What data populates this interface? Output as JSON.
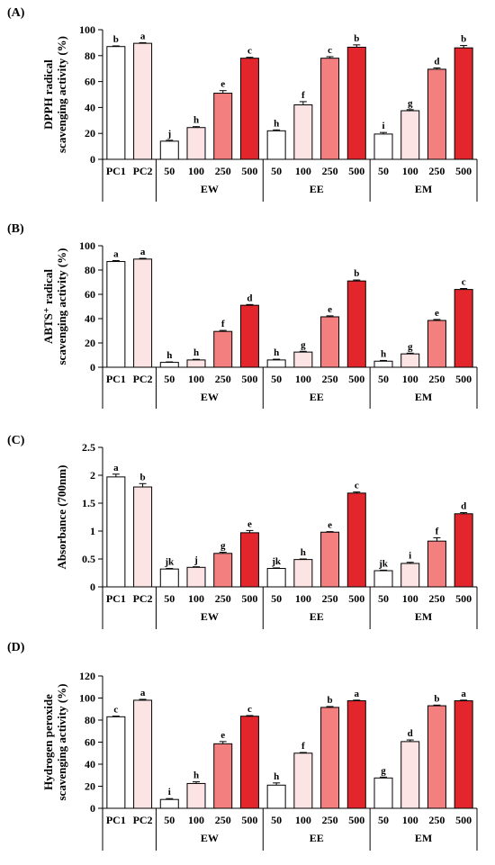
{
  "colors": {
    "PC1": "#ffffff",
    "PC2": "#fde4e4",
    "50": "#ffffff",
    "100": "#fde4e4",
    "250": "#f47f7f",
    "500": "#e3262b",
    "stroke": "#000000"
  },
  "chart_data": [
    {
      "type": "bar",
      "panel_label": "(A)",
      "ylabel": [
        "DPPH  radical",
        "scavenging activity (%)"
      ],
      "ylim": [
        0,
        100
      ],
      "yticks": [
        0,
        20,
        40,
        60,
        80,
        100
      ],
      "categories": [
        "PC1",
        "PC2",
        "50",
        "100",
        "250",
        "500",
        "50",
        "100",
        "250",
        "500",
        "50",
        "100",
        "250",
        "500"
      ],
      "groups": [
        "EW",
        "EE",
        "EM"
      ],
      "values": [
        87,
        89.5,
        14,
        24.5,
        51,
        78,
        22,
        42,
        78,
        86.5,
        19.5,
        37.5,
        69.5,
        86
      ],
      "errors": [
        0.5,
        0.5,
        0.7,
        0.7,
        2,
        0.7,
        0.7,
        2.5,
        1.2,
        1.8,
        1.2,
        0.8,
        1,
        1.8
      ],
      "letters": [
        "b",
        "a",
        "j",
        "h",
        "e",
        "c",
        "h",
        "f",
        "c",
        "b",
        "i",
        "g",
        "d",
        "b"
      ]
    },
    {
      "type": "bar",
      "panel_label": "(B)",
      "ylabel": [
        "ABTS⁺ radical",
        "scavenging activity (%)"
      ],
      "ylim": [
        0,
        100
      ],
      "yticks": [
        0,
        20,
        40,
        60,
        80,
        100
      ],
      "categories": [
        "PC1",
        "PC2",
        "50",
        "100",
        "250",
        "500",
        "50",
        "100",
        "250",
        "500",
        "50",
        "100",
        "250",
        "500"
      ],
      "groups": [
        "EW",
        "EE",
        "EM"
      ],
      "values": [
        87,
        89,
        4,
        6,
        29.5,
        51,
        6,
        12.5,
        41.5,
        71,
        5,
        11,
        38.5,
        64
      ],
      "errors": [
        0.8,
        0.6,
        0.4,
        0.5,
        0.8,
        0.6,
        0.6,
        0.6,
        0.8,
        0.8,
        0.6,
        0.6,
        0.8,
        0.8
      ],
      "letters": [
        "a",
        "a",
        "h",
        "h",
        "f",
        "d",
        "h",
        "g",
        "e",
        "b",
        "h",
        "g",
        "e",
        "c"
      ]
    },
    {
      "type": "bar",
      "panel_label": "(C)",
      "ylabel": [
        "Absorbance (700nm)"
      ],
      "ylim": [
        0,
        2.5
      ],
      "yticks": [
        0,
        0.5,
        1,
        1.5,
        2,
        2.5
      ],
      "categories": [
        "PC1",
        "PC2",
        "50",
        "100",
        "250",
        "500",
        "50",
        "100",
        "250",
        "500",
        "50",
        "100",
        "250",
        "500"
      ],
      "groups": [
        "EW",
        "EE",
        "EM"
      ],
      "values": [
        1.97,
        1.79,
        0.32,
        0.35,
        0.6,
        0.97,
        0.33,
        0.49,
        0.98,
        1.68,
        0.29,
        0.42,
        0.82,
        1.31
      ],
      "errors": [
        0.05,
        0.06,
        0.01,
        0.01,
        0.02,
        0.04,
        0.01,
        0.01,
        0.01,
        0.02,
        0.01,
        0.02,
        0.06,
        0.02
      ],
      "letters": [
        "a",
        "b",
        "jk",
        "j",
        "g",
        "e",
        "jk",
        "h",
        "e",
        "c",
        "jk",
        "i",
        "f",
        "d"
      ]
    },
    {
      "type": "bar",
      "panel_label": "(D)",
      "ylabel": [
        "Hydrogen peroxide",
        "scavenging activity (%)"
      ],
      "ylim": [
        0,
        120
      ],
      "yticks": [
        0,
        20,
        40,
        60,
        80,
        100,
        120
      ],
      "categories": [
        "PC1",
        "PC2",
        "50",
        "100",
        "250",
        "500",
        "50",
        "100",
        "250",
        "500",
        "50",
        "100",
        "250",
        "500"
      ],
      "groups": [
        "EW",
        "EE",
        "EM"
      ],
      "values": [
        83,
        98,
        8,
        22.5,
        58.5,
        83.5,
        21,
        50,
        91.5,
        97.5,
        27.5,
        60.5,
        93,
        97.5
      ],
      "errors": [
        0.6,
        0.8,
        0.8,
        1.5,
        2,
        0.6,
        2,
        0.6,
        0.8,
        0.6,
        0.8,
        1.5,
        0.6,
        0.6
      ],
      "letters": [
        "c",
        "a",
        "i",
        "h",
        "e",
        "c",
        "h",
        "f",
        "b",
        "a",
        "g",
        "d",
        "b",
        "a"
      ]
    }
  ]
}
